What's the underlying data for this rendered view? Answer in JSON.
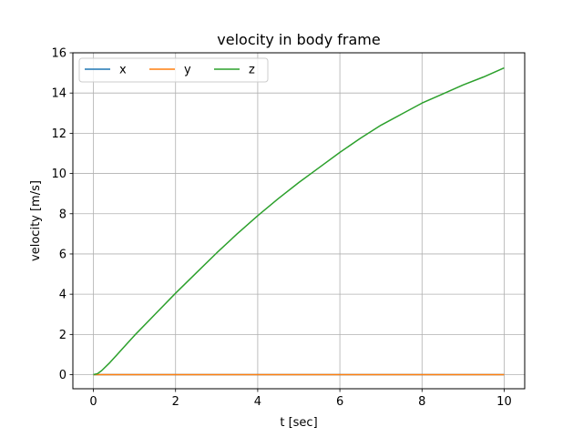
{
  "chart_data": {
    "type": "line",
    "title": "velocity in body frame",
    "xlabel": "t [sec]",
    "ylabel": "velocity [m/s]",
    "xlim": [
      -0.5,
      10.5
    ],
    "ylim": [
      -0.7,
      16
    ],
    "xticks": [
      0,
      2,
      4,
      6,
      8,
      10
    ],
    "yticks": [
      0,
      2,
      4,
      6,
      8,
      10,
      12,
      14,
      16
    ],
    "grid": true,
    "legend": {
      "placement": "top-left",
      "columns": 3
    },
    "x": [
      0,
      0.1,
      0.2,
      0.4,
      0.6,
      0.8,
      1,
      1.5,
      2,
      2.5,
      3,
      3.5,
      4,
      4.5,
      5,
      5.5,
      6,
      6.5,
      7,
      7.5,
      8,
      8.5,
      9,
      9.5,
      10
    ],
    "series": [
      {
        "name": "x",
        "color": "#1f77b4",
        "values": [
          0,
          0,
          0,
          0,
          0,
          0,
          0,
          0,
          0,
          0,
          0,
          0,
          0,
          0,
          0,
          0,
          0,
          0,
          0,
          0,
          0,
          0,
          0,
          0,
          0
        ]
      },
      {
        "name": "y",
        "color": "#ff7f0e",
        "values": [
          0,
          0,
          0,
          0,
          0,
          0,
          0,
          0,
          0,
          0,
          0,
          0,
          0,
          0,
          0,
          0,
          0,
          0,
          0,
          0,
          0,
          0,
          0,
          0,
          0
        ]
      },
      {
        "name": "z",
        "color": "#2ca02c",
        "values": [
          0,
          0.05,
          0.2,
          0.6,
          1.05,
          1.5,
          1.95,
          3.0,
          4.05,
          5.05,
          6.05,
          7.0,
          7.9,
          8.75,
          9.55,
          10.3,
          11.05,
          11.75,
          12.4,
          12.95,
          13.5,
          13.95,
          14.4,
          14.8,
          15.25
        ]
      }
    ]
  }
}
